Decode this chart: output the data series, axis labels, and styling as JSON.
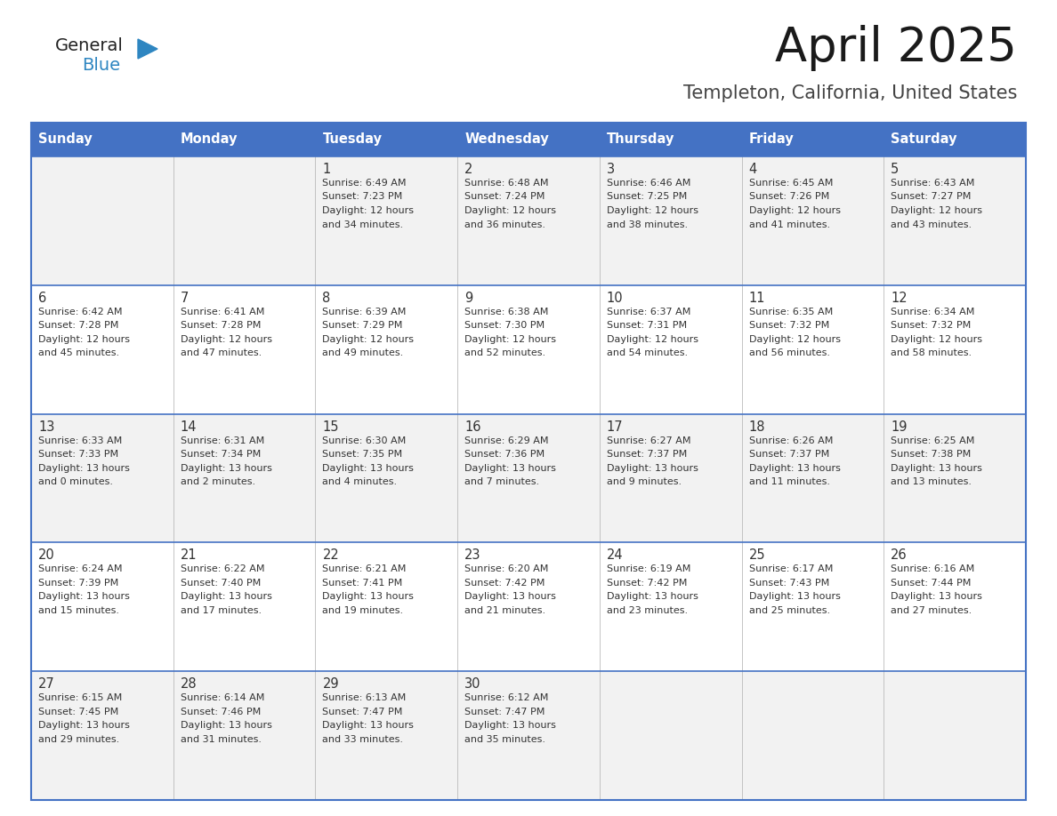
{
  "title": "April 2025",
  "subtitle": "Templeton, California, United States",
  "header_bg": "#4472C4",
  "header_text_color": "#FFFFFF",
  "cell_bg_odd": "#F2F2F2",
  "cell_bg_even": "#FFFFFF",
  "border_color": "#4472C4",
  "text_color": "#333333",
  "day_headers": [
    "Sunday",
    "Monday",
    "Tuesday",
    "Wednesday",
    "Thursday",
    "Friday",
    "Saturday"
  ],
  "weeks": [
    [
      {
        "day": "",
        "sunrise": "",
        "sunset": "",
        "daylight1": "",
        "daylight2": ""
      },
      {
        "day": "",
        "sunrise": "",
        "sunset": "",
        "daylight1": "",
        "daylight2": ""
      },
      {
        "day": "1",
        "sunrise": "Sunrise: 6:49 AM",
        "sunset": "Sunset: 7:23 PM",
        "daylight1": "Daylight: 12 hours",
        "daylight2": "and 34 minutes."
      },
      {
        "day": "2",
        "sunrise": "Sunrise: 6:48 AM",
        "sunset": "Sunset: 7:24 PM",
        "daylight1": "Daylight: 12 hours",
        "daylight2": "and 36 minutes."
      },
      {
        "day": "3",
        "sunrise": "Sunrise: 6:46 AM",
        "sunset": "Sunset: 7:25 PM",
        "daylight1": "Daylight: 12 hours",
        "daylight2": "and 38 minutes."
      },
      {
        "day": "4",
        "sunrise": "Sunrise: 6:45 AM",
        "sunset": "Sunset: 7:26 PM",
        "daylight1": "Daylight: 12 hours",
        "daylight2": "and 41 minutes."
      },
      {
        "day": "5",
        "sunrise": "Sunrise: 6:43 AM",
        "sunset": "Sunset: 7:27 PM",
        "daylight1": "Daylight: 12 hours",
        "daylight2": "and 43 minutes."
      }
    ],
    [
      {
        "day": "6",
        "sunrise": "Sunrise: 6:42 AM",
        "sunset": "Sunset: 7:28 PM",
        "daylight1": "Daylight: 12 hours",
        "daylight2": "and 45 minutes."
      },
      {
        "day": "7",
        "sunrise": "Sunrise: 6:41 AM",
        "sunset": "Sunset: 7:28 PM",
        "daylight1": "Daylight: 12 hours",
        "daylight2": "and 47 minutes."
      },
      {
        "day": "8",
        "sunrise": "Sunrise: 6:39 AM",
        "sunset": "Sunset: 7:29 PM",
        "daylight1": "Daylight: 12 hours",
        "daylight2": "and 49 minutes."
      },
      {
        "day": "9",
        "sunrise": "Sunrise: 6:38 AM",
        "sunset": "Sunset: 7:30 PM",
        "daylight1": "Daylight: 12 hours",
        "daylight2": "and 52 minutes."
      },
      {
        "day": "10",
        "sunrise": "Sunrise: 6:37 AM",
        "sunset": "Sunset: 7:31 PM",
        "daylight1": "Daylight: 12 hours",
        "daylight2": "and 54 minutes."
      },
      {
        "day": "11",
        "sunrise": "Sunrise: 6:35 AM",
        "sunset": "Sunset: 7:32 PM",
        "daylight1": "Daylight: 12 hours",
        "daylight2": "and 56 minutes."
      },
      {
        "day": "12",
        "sunrise": "Sunrise: 6:34 AM",
        "sunset": "Sunset: 7:32 PM",
        "daylight1": "Daylight: 12 hours",
        "daylight2": "and 58 minutes."
      }
    ],
    [
      {
        "day": "13",
        "sunrise": "Sunrise: 6:33 AM",
        "sunset": "Sunset: 7:33 PM",
        "daylight1": "Daylight: 13 hours",
        "daylight2": "and 0 minutes."
      },
      {
        "day": "14",
        "sunrise": "Sunrise: 6:31 AM",
        "sunset": "Sunset: 7:34 PM",
        "daylight1": "Daylight: 13 hours",
        "daylight2": "and 2 minutes."
      },
      {
        "day": "15",
        "sunrise": "Sunrise: 6:30 AM",
        "sunset": "Sunset: 7:35 PM",
        "daylight1": "Daylight: 13 hours",
        "daylight2": "and 4 minutes."
      },
      {
        "day": "16",
        "sunrise": "Sunrise: 6:29 AM",
        "sunset": "Sunset: 7:36 PM",
        "daylight1": "Daylight: 13 hours",
        "daylight2": "and 7 minutes."
      },
      {
        "day": "17",
        "sunrise": "Sunrise: 6:27 AM",
        "sunset": "Sunset: 7:37 PM",
        "daylight1": "Daylight: 13 hours",
        "daylight2": "and 9 minutes."
      },
      {
        "day": "18",
        "sunrise": "Sunrise: 6:26 AM",
        "sunset": "Sunset: 7:37 PM",
        "daylight1": "Daylight: 13 hours",
        "daylight2": "and 11 minutes."
      },
      {
        "day": "19",
        "sunrise": "Sunrise: 6:25 AM",
        "sunset": "Sunset: 7:38 PM",
        "daylight1": "Daylight: 13 hours",
        "daylight2": "and 13 minutes."
      }
    ],
    [
      {
        "day": "20",
        "sunrise": "Sunrise: 6:24 AM",
        "sunset": "Sunset: 7:39 PM",
        "daylight1": "Daylight: 13 hours",
        "daylight2": "and 15 minutes."
      },
      {
        "day": "21",
        "sunrise": "Sunrise: 6:22 AM",
        "sunset": "Sunset: 7:40 PM",
        "daylight1": "Daylight: 13 hours",
        "daylight2": "and 17 minutes."
      },
      {
        "day": "22",
        "sunrise": "Sunrise: 6:21 AM",
        "sunset": "Sunset: 7:41 PM",
        "daylight1": "Daylight: 13 hours",
        "daylight2": "and 19 minutes."
      },
      {
        "day": "23",
        "sunrise": "Sunrise: 6:20 AM",
        "sunset": "Sunset: 7:42 PM",
        "daylight1": "Daylight: 13 hours",
        "daylight2": "and 21 minutes."
      },
      {
        "day": "24",
        "sunrise": "Sunrise: 6:19 AM",
        "sunset": "Sunset: 7:42 PM",
        "daylight1": "Daylight: 13 hours",
        "daylight2": "and 23 minutes."
      },
      {
        "day": "25",
        "sunrise": "Sunrise: 6:17 AM",
        "sunset": "Sunset: 7:43 PM",
        "daylight1": "Daylight: 13 hours",
        "daylight2": "and 25 minutes."
      },
      {
        "day": "26",
        "sunrise": "Sunrise: 6:16 AM",
        "sunset": "Sunset: 7:44 PM",
        "daylight1": "Daylight: 13 hours",
        "daylight2": "and 27 minutes."
      }
    ],
    [
      {
        "day": "27",
        "sunrise": "Sunrise: 6:15 AM",
        "sunset": "Sunset: 7:45 PM",
        "daylight1": "Daylight: 13 hours",
        "daylight2": "and 29 minutes."
      },
      {
        "day": "28",
        "sunrise": "Sunrise: 6:14 AM",
        "sunset": "Sunset: 7:46 PM",
        "daylight1": "Daylight: 13 hours",
        "daylight2": "and 31 minutes."
      },
      {
        "day": "29",
        "sunrise": "Sunrise: 6:13 AM",
        "sunset": "Sunset: 7:47 PM",
        "daylight1": "Daylight: 13 hours",
        "daylight2": "and 33 minutes."
      },
      {
        "day": "30",
        "sunrise": "Sunrise: 6:12 AM",
        "sunset": "Sunset: 7:47 PM",
        "daylight1": "Daylight: 13 hours",
        "daylight2": "and 35 minutes."
      },
      {
        "day": "",
        "sunrise": "",
        "sunset": "",
        "daylight1": "",
        "daylight2": ""
      },
      {
        "day": "",
        "sunrise": "",
        "sunset": "",
        "daylight1": "",
        "daylight2": ""
      },
      {
        "day": "",
        "sunrise": "",
        "sunset": "",
        "daylight1": "",
        "daylight2": ""
      }
    ]
  ],
  "logo_general_color": "#222222",
  "logo_blue_color": "#2e86c1",
  "logo_triangle_color": "#2e86c1"
}
